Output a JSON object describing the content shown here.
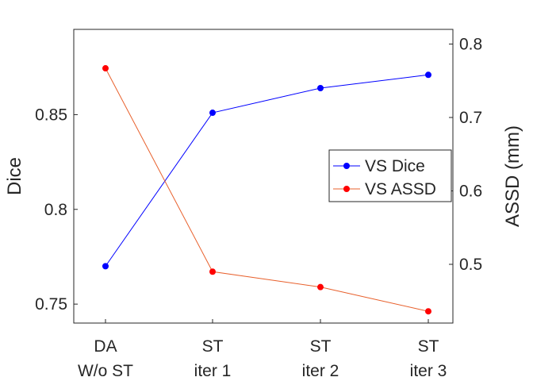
{
  "chart_data": {
    "type": "line",
    "title": "",
    "categories": [
      [
        "DA",
        "W/o ST"
      ],
      [
        "ST",
        "iter 1"
      ],
      [
        "ST",
        "iter 2"
      ],
      [
        "ST",
        "iter 3"
      ]
    ],
    "left_axis": {
      "label": "Dice",
      "ylim": [
        0.74,
        0.895
      ],
      "ticks": [
        0.75,
        0.8,
        0.85
      ],
      "tick_labels": [
        "0.75",
        "0.8",
        "0.85"
      ]
    },
    "right_axis": {
      "label": "ASSD (mm)",
      "ylim": [
        0.42,
        0.82
      ],
      "ticks": [
        0.5,
        0.6,
        0.7,
        0.8
      ],
      "tick_labels": [
        "0.5",
        "0.6",
        "0.7",
        "0.8"
      ]
    },
    "series": [
      {
        "name": "VS Dice",
        "axis": "left",
        "color": "#0000ff",
        "values": [
          0.77,
          0.851,
          0.864,
          0.871
        ]
      },
      {
        "name": "VS ASSD",
        "axis": "right",
        "color": "#ff0000",
        "line_color": "#e8602c",
        "values": [
          0.767,
          0.49,
          0.469,
          0.436
        ]
      }
    ],
    "legend_position": "center-right"
  }
}
